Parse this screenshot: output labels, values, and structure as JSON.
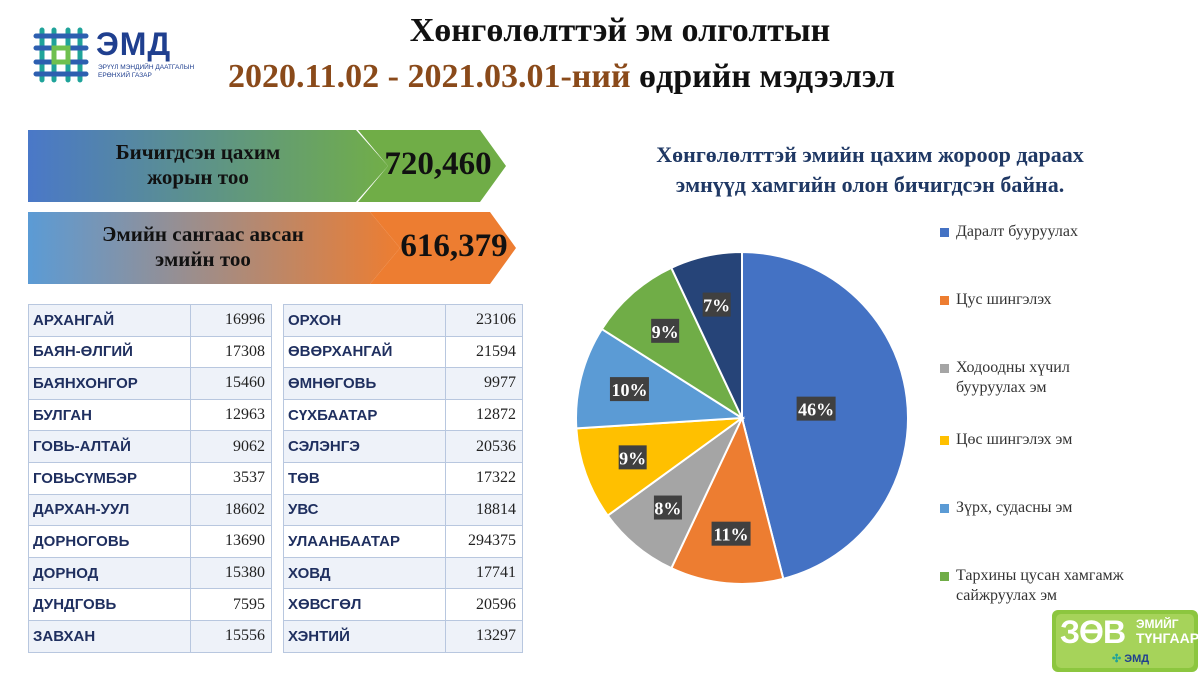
{
  "logo": {
    "name": "ЭМД",
    "subtitle_line1": "ЭРҮҮЛ МЭНДИЙН ДААТГАЛЫН",
    "subtitle_line2": "ЕРӨНХИЙ ГАЗАР"
  },
  "header": {
    "title_line1": "Хөнгөлөлттэй эм олголтын",
    "title_line2_dates": "2020.11.02 - 2021.03.01-ний",
    "title_line2_rest": " өдрийн мэдээлэл"
  },
  "stats": [
    {
      "label_line1": "Бичигдсэн цахим",
      "label_line2": "жорын тоо",
      "value": "720,460",
      "color": "#4472c4",
      "arrow_color": "#70ad47"
    },
    {
      "label_line1": "Эмийн сангаас авсан",
      "label_line2": "эмийн тоо",
      "value": "616,379",
      "color": "#5b9bd5",
      "arrow_color": "#ed7d31"
    }
  ],
  "provinces_left": [
    {
      "name": "АРХАНГАЙ",
      "value": "16996"
    },
    {
      "name": "БАЯН-ӨЛГИЙ",
      "value": "17308"
    },
    {
      "name": "БАЯНХОНГОР",
      "value": "15460"
    },
    {
      "name": "БУЛГАН",
      "value": "12963"
    },
    {
      "name": "ГОВЬ-АЛТАЙ",
      "value": "9062"
    },
    {
      "name": "ГОВЬСҮМБЭР",
      "value": "3537"
    },
    {
      "name": "ДАРХАН-УУЛ",
      "value": "18602"
    },
    {
      "name": "ДОРНОГОВЬ",
      "value": "13690"
    },
    {
      "name": "ДОРНОД",
      "value": "15380"
    },
    {
      "name": "ДУНДГОВЬ",
      "value": "7595"
    },
    {
      "name": "ЗАВХАН",
      "value": "15556"
    }
  ],
  "provinces_right": [
    {
      "name": "ОРХОН",
      "value": "23106"
    },
    {
      "name": "ӨВӨРХАНГАЙ",
      "value": "21594"
    },
    {
      "name": "ӨМНӨГОВЬ",
      "value": "9977"
    },
    {
      "name": "СҮХБААТАР",
      "value": "12872"
    },
    {
      "name": "СЭЛЭНГЭ",
      "value": "20536"
    },
    {
      "name": "ТӨВ",
      "value": "17322"
    },
    {
      "name": "УВС",
      "value": "18814"
    },
    {
      "name": "УЛААНБААТАР",
      "value": "294375"
    },
    {
      "name": "ХОВД",
      "value": "17741"
    },
    {
      "name": "ХӨВСГӨЛ",
      "value": "20596"
    },
    {
      "name": "ХЭНТИЙ",
      "value": "13297"
    }
  ],
  "chart_data": {
    "type": "pie",
    "title": "Хөнгөлөлттэй  эмийн цахим жороор дараах эмнүүд хамгийн олон бичигдсэн байна.",
    "title_line1": "Хөнгөлөлттэй  эмийн цахим жороор дараах",
    "title_line2": "эмнүүд хамгийн олон бичигдсэн байна.",
    "legend_position": "right",
    "slices": [
      {
        "name": "Даралт бууруулах",
        "value": 46,
        "label": "46%",
        "color": "#4472c4"
      },
      {
        "name": "Цус шингэлэх",
        "value": 11,
        "label": "11%",
        "color": "#ed7d31"
      },
      {
        "name": "Ходоодны хүчил бууруулах  эм",
        "value": 8,
        "label": "8%",
        "color": "#a5a5a5"
      },
      {
        "name": "Цөс шингэлэх эм",
        "value": 9,
        "label": "9%",
        "color": "#ffc000"
      },
      {
        "name": "Зүрх, судасны эм",
        "value": 10,
        "label": "10%",
        "color": "#5b9bd5"
      },
      {
        "name": "Тархины цусан хамгамж сайжруулах эм",
        "value": 9,
        "label": "9%",
        "color": "#70ad47"
      },
      {
        "name": "",
        "value": 7,
        "label": "7%",
        "color": "#264478"
      }
    ]
  },
  "badge": {
    "big": "ЗӨВ",
    "line1": "ЭМИЙГ",
    "line2": "ТҮНГААР",
    "brand": "ЭМД"
  }
}
